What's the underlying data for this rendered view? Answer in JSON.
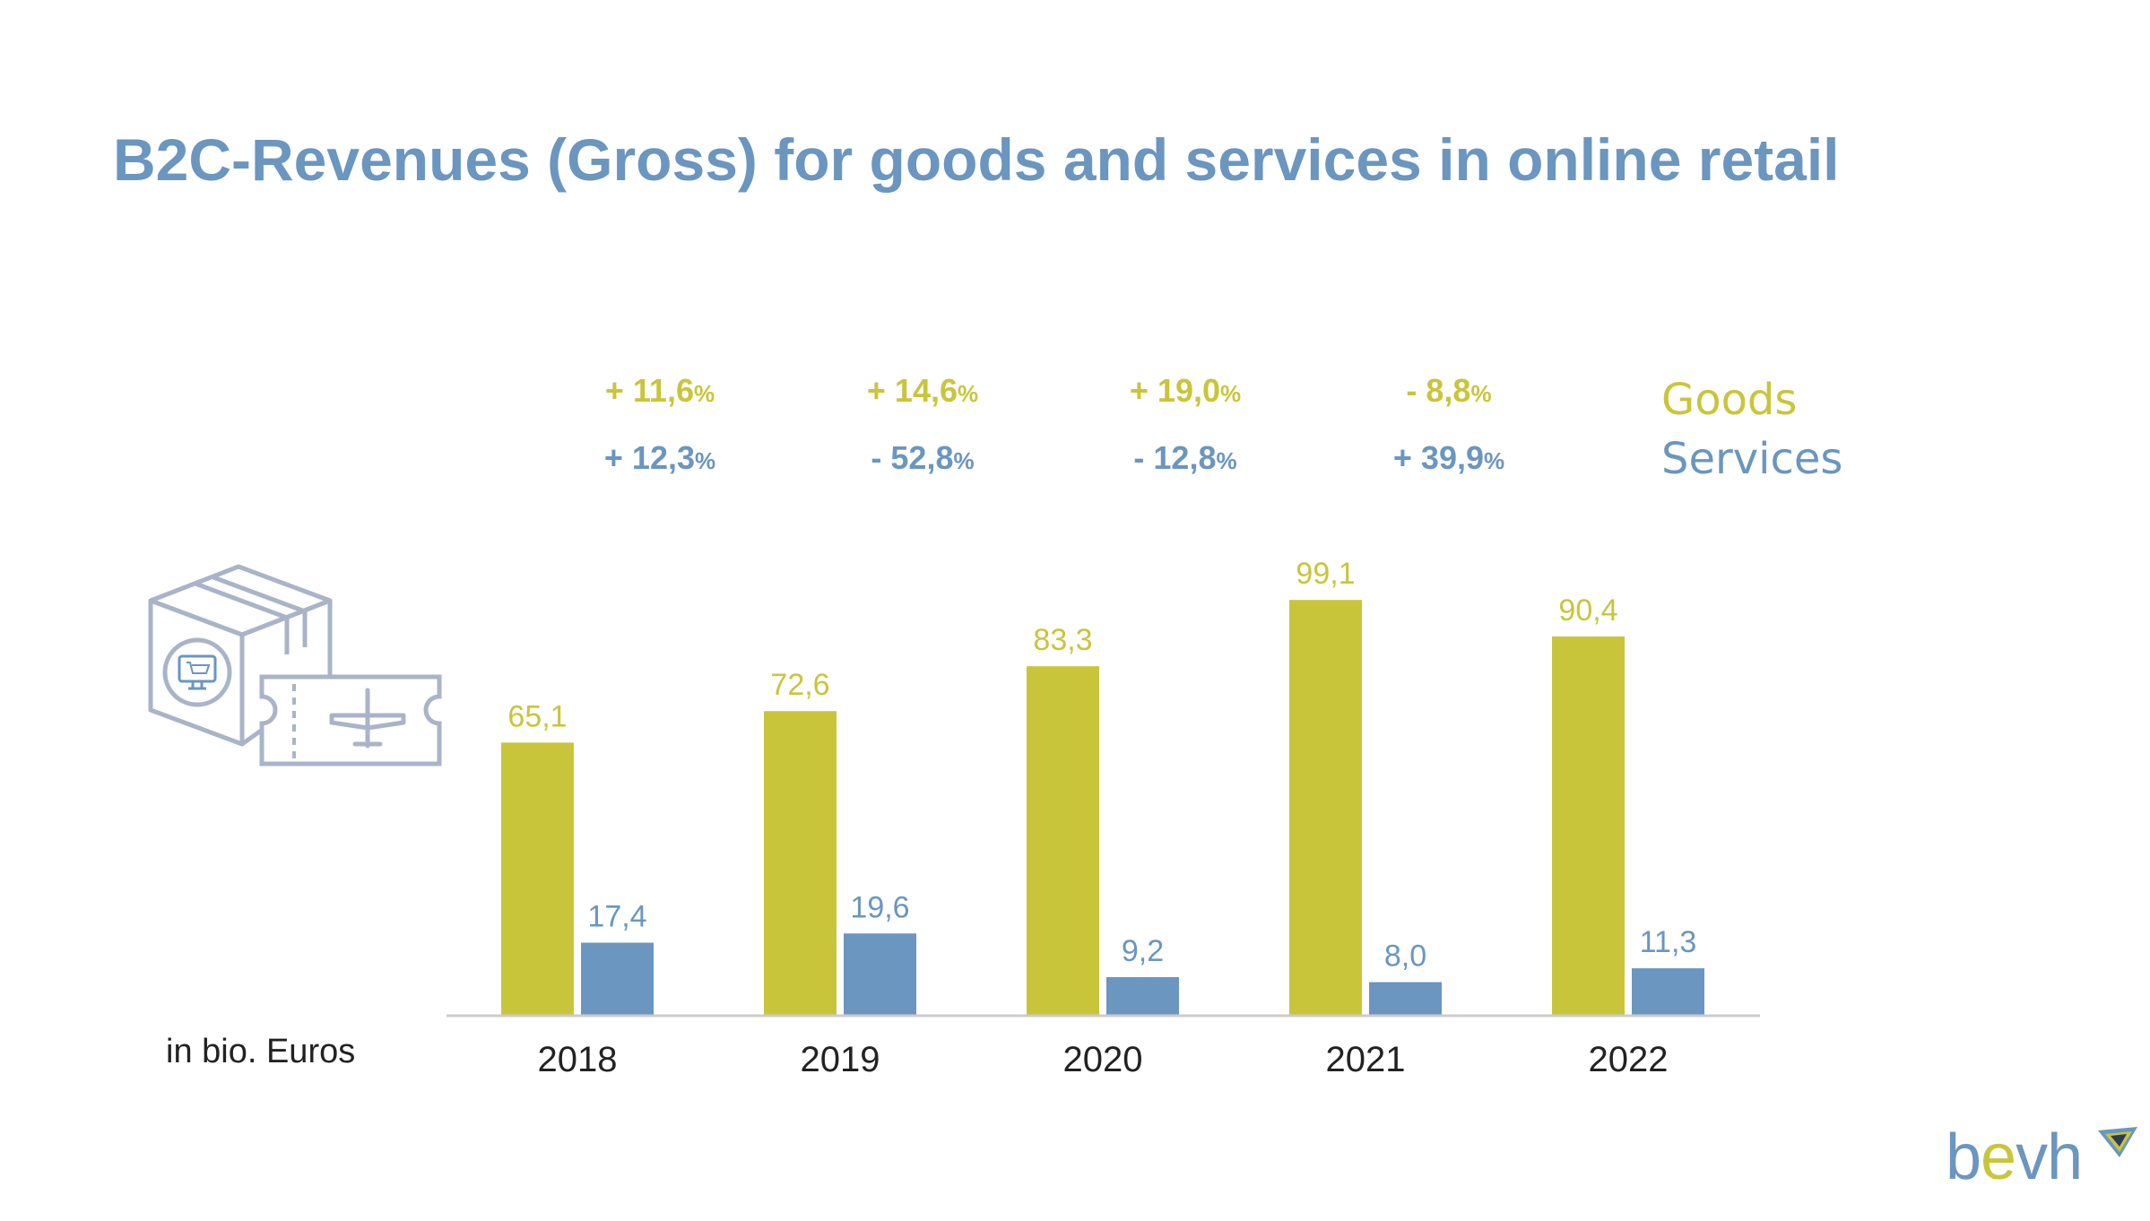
{
  "title": "B2C-Revenues (Gross) for goods and services in online retail",
  "legend": {
    "goods": "Goods",
    "services": "Services"
  },
  "growth": {
    "goods": [
      {
        "value": "+ 11,6",
        "unit": "%"
      },
      {
        "value": "+ 14,6",
        "unit": "%"
      },
      {
        "value": "+ 19,0",
        "unit": "%"
      },
      {
        "value": "- 8,8",
        "unit": "%"
      }
    ],
    "services": [
      {
        "value": "+ 12,3",
        "unit": "%"
      },
      {
        "value": "- 52,8",
        "unit": "%"
      },
      {
        "value": "- 12,8",
        "unit": "%"
      },
      {
        "value": "+ 39,9",
        "unit": "%"
      }
    ]
  },
  "unit_label": "in bio. Euros",
  "logo": {
    "b": "b",
    "e": "e",
    "vh": "vh"
  },
  "colors": {
    "goods": "#c9c53b",
    "services": "#6a96bf",
    "axis": "#cccccc",
    "text": "#222222"
  },
  "icons": [
    "package-icon",
    "shopping-cart-icon",
    "plane-ticket-icon",
    "bevh-logo-icon"
  ],
  "chart_data": {
    "type": "bar",
    "categories": [
      "2018",
      "2019",
      "2020",
      "2021",
      "2022"
    ],
    "series": [
      {
        "name": "Goods",
        "values": [
          65.1,
          72.6,
          83.3,
          99.1,
          90.4
        ],
        "labels": [
          "65,1",
          "72,6",
          "83,3",
          "99,1",
          "90,4"
        ]
      },
      {
        "name": "Services",
        "values": [
          17.4,
          19.6,
          9.2,
          8.0,
          11.3
        ],
        "labels": [
          "17,4",
          "19,6",
          "9,2",
          "8,0",
          "11,3"
        ]
      }
    ],
    "ylabel": "in bio. Euros",
    "ylim": [
      0,
      100
    ],
    "grid": false,
    "legend": "top-right"
  }
}
